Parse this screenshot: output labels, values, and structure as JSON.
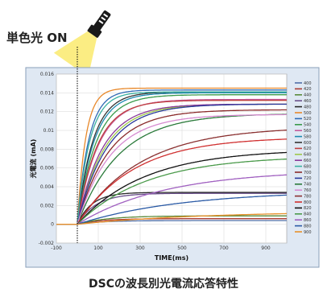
{
  "callout": "単色光 ON",
  "caption": "DSCの波長別光電流応答特性",
  "chart_data": {
    "type": "line",
    "xlabel": "TIME(ms)",
    "ylabel": "光電流 (mA)",
    "xlim": [
      -100,
      1000
    ],
    "ylim": [
      -0.002,
      0.016
    ],
    "x_ticks": [
      -100,
      100,
      300,
      500,
      700,
      900
    ],
    "y_ticks": [
      -0.002,
      0,
      0.002,
      0.004,
      0.006,
      0.008,
      0.01,
      0.012,
      0.014,
      0.016
    ],
    "y_tick_labels": [
      "-0.002",
      "0",
      "0.002",
      "0.004",
      "0.006",
      "0.008",
      "0.01",
      "0.012",
      "0.014",
      "0.016"
    ],
    "legend_position": "right",
    "light_on_x": 0,
    "series": [
      {
        "name": "400",
        "color": "#4f6fa8",
        "plateau": 0.0004,
        "tau": 120
      },
      {
        "name": "420",
        "color": "#aa3b32",
        "plateau": 0.0006,
        "tau": 110
      },
      {
        "name": "440",
        "color": "#5a8a3a",
        "plateau": 0.0009,
        "tau": 140
      },
      {
        "name": "460",
        "color": "#6a4f8a",
        "plateau": 0.0033,
        "tau": 90
      },
      {
        "name": "480",
        "color": "#2a2a2a",
        "plateau": 0.0034,
        "tau": 70
      },
      {
        "name": "500",
        "color": "#e8882a",
        "plateau": 0.0145,
        "tau": 40
      },
      {
        "name": "520",
        "color": "#2f6bb5",
        "plateau": 0.0143,
        "tau": 55
      },
      {
        "name": "540",
        "color": "#3a9a4a",
        "plateau": 0.0138,
        "tau": 90
      },
      {
        "name": "560",
        "color": "#c45a9a",
        "plateau": 0.0133,
        "tau": 100
      },
      {
        "name": "580",
        "color": "#1d8ab0",
        "plateau": 0.014,
        "tau": 80
      },
      {
        "name": "600",
        "color": "#333333",
        "plateau": 0.0141,
        "tau": 75
      },
      {
        "name": "620",
        "color": "#c04040",
        "plateau": 0.0132,
        "tau": 95
      },
      {
        "name": "640",
        "color": "#9ec84a",
        "plateau": 0.0128,
        "tau": 130
      },
      {
        "name": "660",
        "color": "#8a3a9a",
        "plateau": 0.0128,
        "tau": 120
      },
      {
        "name": "680",
        "color": "#3ab0a0",
        "plateau": 0.0141,
        "tau": 60
      },
      {
        "name": "700",
        "color": "#8a2a2a",
        "plateau": 0.0122,
        "tau": 150
      },
      {
        "name": "720",
        "color": "#2a3a9a",
        "plateau": 0.0128,
        "tau": 140
      },
      {
        "name": "740",
        "color": "#2a7a3a",
        "plateau": 0.0118,
        "tau": 200
      },
      {
        "name": "760",
        "color": "#d68ad0",
        "plateau": 0.0117,
        "tau": 160
      },
      {
        "name": "780",
        "color": "#8a3030",
        "plateau": 0.0104,
        "tau": 300
      },
      {
        "name": "800",
        "color": "#d03030",
        "plateau": 0.0093,
        "tau": 270
      },
      {
        "name": "820",
        "color": "#111111",
        "plateau": 0.008,
        "tau": 320
      },
      {
        "name": "840",
        "color": "#4a9a4a",
        "plateau": 0.0073,
        "tau": 330
      },
      {
        "name": "860",
        "color": "#a060c0",
        "plateau": 0.0058,
        "tau": 420
      },
      {
        "name": "880",
        "color": "#2a5aa5",
        "plateau": 0.0036,
        "tau": 500
      },
      {
        "name": "900",
        "color": "#e8902a",
        "plateau": 0.0014,
        "tau": 600
      }
    ]
  }
}
